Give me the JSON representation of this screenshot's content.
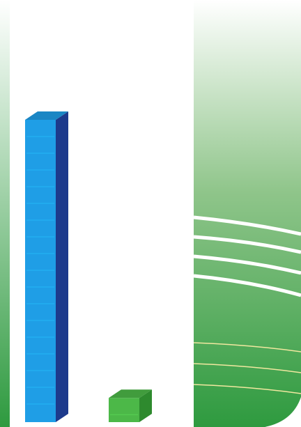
{
  "chart_data": {
    "type": "bar",
    "style": "3d",
    "categories": [
      "",
      ""
    ],
    "values": [
      100,
      8
    ],
    "bar_colors": [
      "#1f9ee6",
      "#4cb848"
    ],
    "side_colors": [
      "#1d3a8c",
      "#2e8a2e"
    ],
    "title": "",
    "xlabel": "",
    "ylabel": "",
    "ylim": [
      0,
      100
    ],
    "grid": false
  },
  "decoration": {
    "panel_colors": [
      "#ffffff",
      "#8fc58a",
      "#2e9a3f"
    ],
    "swoosh_color": "#ffffff",
    "accent_line_color": "#f2e8a0"
  }
}
